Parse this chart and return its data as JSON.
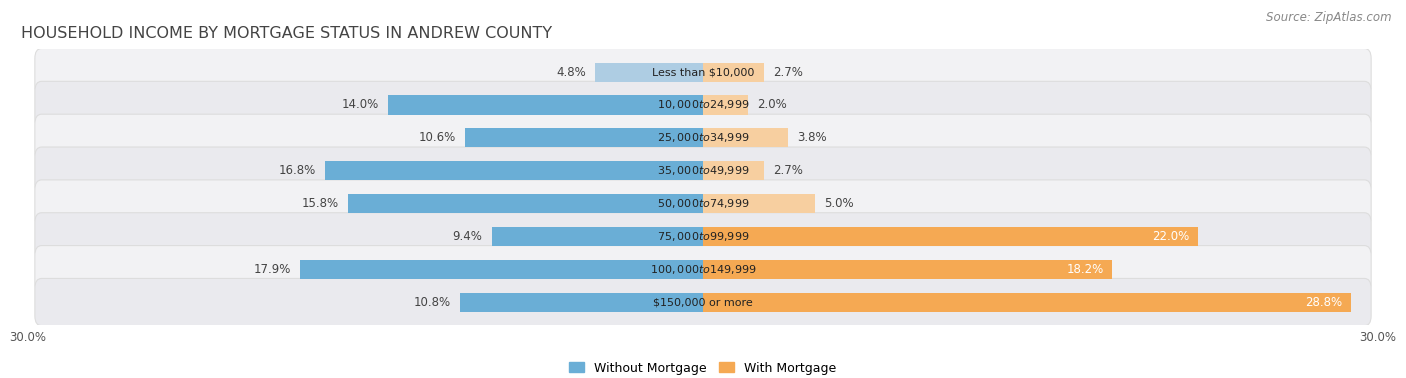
{
  "title": "HOUSEHOLD INCOME BY MORTGAGE STATUS IN ANDREW COUNTY",
  "source": "Source: ZipAtlas.com",
  "categories": [
    "Less than $10,000",
    "$10,000 to $24,999",
    "$25,000 to $34,999",
    "$35,000 to $49,999",
    "$50,000 to $74,999",
    "$75,000 to $99,999",
    "$100,000 to $149,999",
    "$150,000 or more"
  ],
  "without_mortgage": [
    4.8,
    14.0,
    10.6,
    16.8,
    15.8,
    9.4,
    17.9,
    10.8
  ],
  "with_mortgage": [
    2.7,
    2.0,
    3.8,
    2.7,
    5.0,
    22.0,
    18.2,
    28.8
  ],
  "without_color_strong": "#6aaed6",
  "without_color_light": "#aecde3",
  "with_color_strong": "#f5a953",
  "with_color_light": "#f7cfa0",
  "row_bg_even": "#f2f2f4",
  "row_bg_odd": "#eaeaee",
  "axis_limit": 30.0,
  "title_fontsize": 11.5,
  "source_fontsize": 8.5,
  "value_fontsize": 8.5,
  "cat_fontsize": 8,
  "legend_fontsize": 9,
  "background_color": "#ffffff"
}
